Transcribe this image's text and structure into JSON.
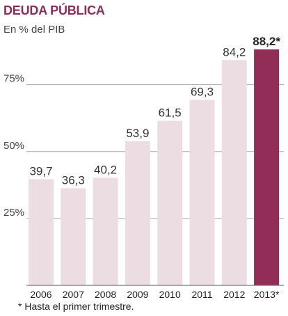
{
  "title": "DEUDA PÚBLICA",
  "subtitle": "En % del PIB",
  "footnote": "* Hasta el primer trimestre.",
  "colors": {
    "bar": "#ecdde2",
    "highlight": "#922d58",
    "title": "#8e2d57",
    "grid": "#a9a9a9"
  },
  "chart_data": {
    "type": "bar",
    "title": "DEUDA PÚBLICA",
    "subtitle": "En % del PIB",
    "categories": [
      "2006",
      "2007",
      "2008",
      "2009",
      "2010",
      "2011",
      "2012",
      "2013*"
    ],
    "values": [
      39.7,
      36.3,
      40.2,
      53.9,
      61.5,
      69.3,
      84.2,
      88.2
    ],
    "value_labels": [
      "39,7",
      "36,3",
      "40,2",
      "53,9",
      "61,5",
      "69,3",
      "84,2",
      "88,2*"
    ],
    "highlight_index": 7,
    "yticks": [
      25,
      50,
      75
    ],
    "ytick_labels": [
      "25%",
      "50%",
      "75%"
    ],
    "ylim": [
      0,
      90
    ],
    "grid": true
  }
}
